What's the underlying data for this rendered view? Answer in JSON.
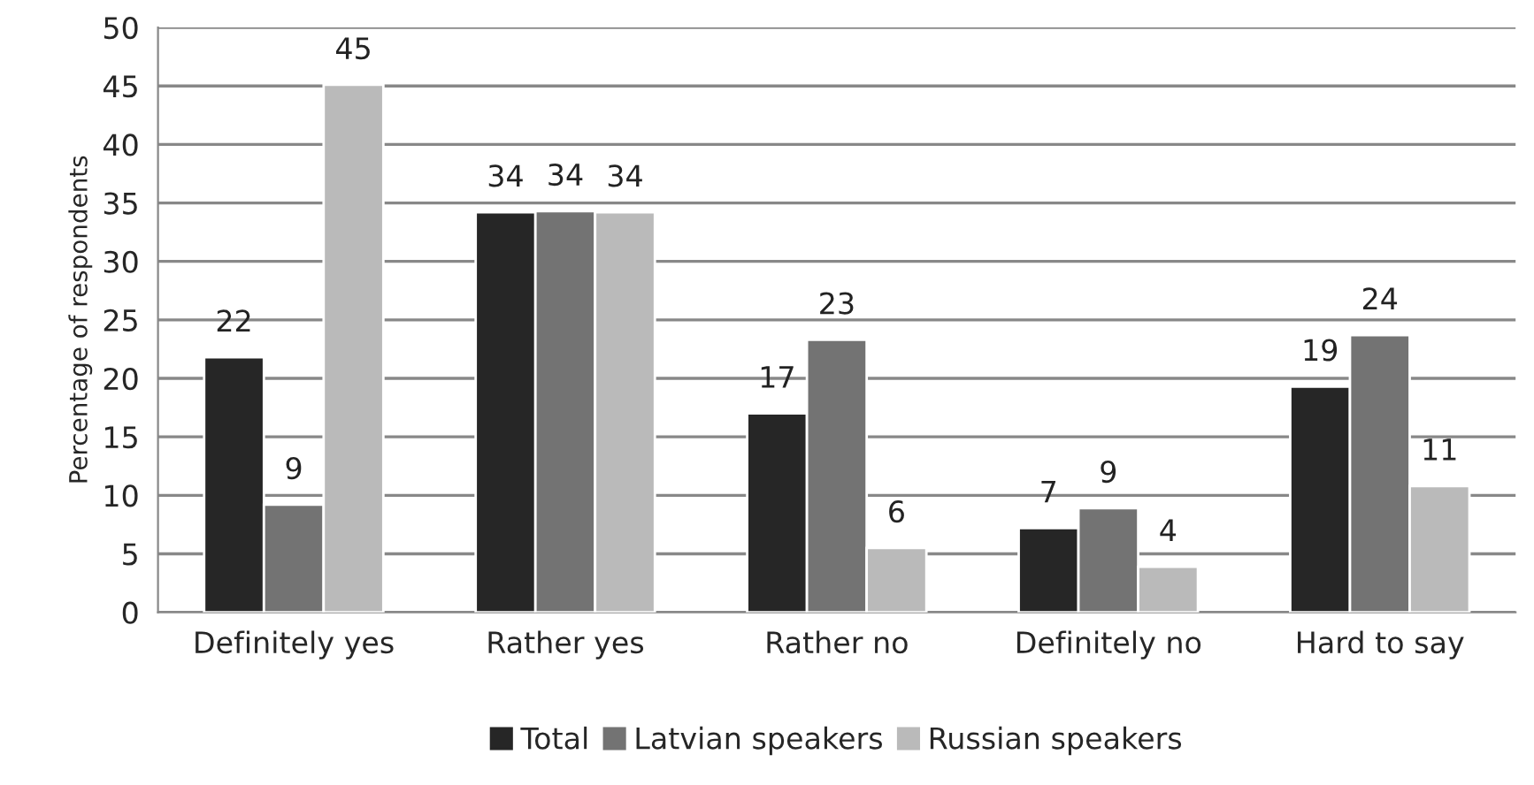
{
  "chart_data": {
    "type": "bar",
    "ylabel": "Percentage of respondents",
    "categories": [
      "Definitely yes",
      "Rather yes",
      "Rather no",
      "Definitely no",
      "Hard to say"
    ],
    "series": [
      {
        "name": "Total",
        "color": "#262626",
        "values": [
          21.8,
          34.2,
          17.0,
          7.2,
          19.3
        ],
        "value_labels": [
          "22",
          "34",
          "17",
          "7",
          "19"
        ]
      },
      {
        "name": "Latvian speakers",
        "color": "#737373",
        "values": [
          9.2,
          34.3,
          23.3,
          8.9,
          23.7
        ],
        "value_labels": [
          "9",
          "34",
          "23",
          "9",
          "24"
        ]
      },
      {
        "name": "Russian speakers",
        "color": "#bababa",
        "values": [
          45.1,
          34.2,
          5.5,
          3.9,
          10.8
        ],
        "value_labels": [
          "45",
          "34",
          "6",
          "4",
          "11"
        ]
      }
    ],
    "ylim": [
      0,
      50
    ],
    "yticks": [
      0,
      5,
      10,
      15,
      20,
      25,
      30,
      35,
      40,
      45,
      50
    ],
    "grid": "y",
    "legend": "bottom"
  }
}
